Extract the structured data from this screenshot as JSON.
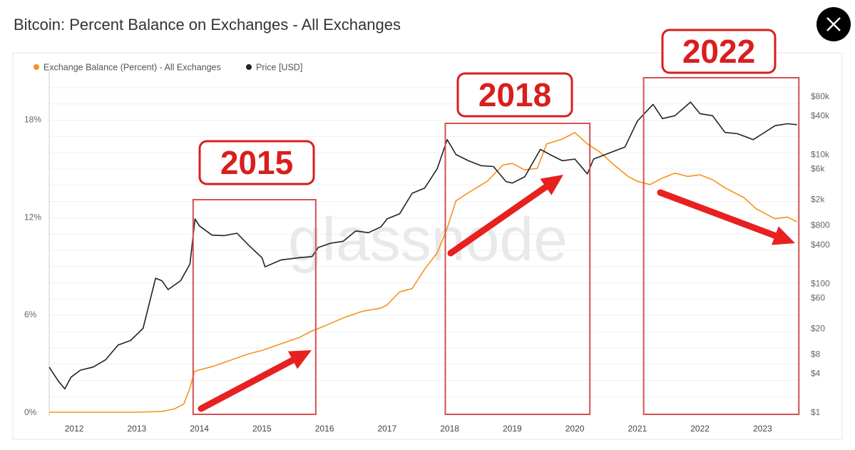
{
  "header": {
    "title": "Bitcoin: Percent Balance on Exchanges - All Exchanges",
    "close_icon": "close-icon"
  },
  "legend": [
    {
      "name": "Exchange Balance (Percent) - All Exchanges",
      "color": "#f7931a"
    },
    {
      "name": "Price [USD]",
      "color": "#222222"
    }
  ],
  "watermark": "glassnode",
  "chart_data": {
    "type": "line",
    "title": "Bitcoin: Percent Balance on Exchanges - All Exchanges",
    "x_ticks": [
      "2012",
      "2013",
      "2014",
      "2015",
      "2016",
      "2017",
      "2018",
      "2019",
      "2020",
      "2021",
      "2022",
      "2023"
    ],
    "xlim": [
      2011.6,
      2023.6
    ],
    "y_left": {
      "ticks": [
        "0%",
        "6%",
        "12%",
        "18%"
      ],
      "values": [
        0,
        6,
        12,
        18
      ],
      "ylim": [
        0,
        19.8
      ]
    },
    "y_right": {
      "scale": "log",
      "ticks": [
        "$1",
        "$4",
        "$8",
        "$20",
        "$60",
        "$100",
        "$400",
        "$800",
        "$2k",
        "$6k",
        "$10k",
        "$40k",
        "$80k"
      ],
      "values": [
        1,
        4,
        8,
        20,
        60,
        100,
        400,
        800,
        2000,
        6000,
        10000,
        40000,
        80000
      ]
    },
    "grid": true,
    "legend_placement": "top-left",
    "series": [
      {
        "name": "Exchange Balance (Percent) - All Exchanges",
        "color": "#f7931a",
        "axis": "left",
        "points": [
          [
            2011.6,
            0.0
          ],
          [
            2012.0,
            0.0
          ],
          [
            2012.5,
            0.0
          ],
          [
            2013.0,
            0.0
          ],
          [
            2013.4,
            0.05
          ],
          [
            2013.6,
            0.2
          ],
          [
            2013.75,
            0.5
          ],
          [
            2013.85,
            1.5
          ],
          [
            2013.92,
            2.5
          ],
          [
            2014.0,
            2.6
          ],
          [
            2014.2,
            2.8
          ],
          [
            2014.5,
            3.2
          ],
          [
            2014.8,
            3.6
          ],
          [
            2015.0,
            3.8
          ],
          [
            2015.3,
            4.2
          ],
          [
            2015.6,
            4.6
          ],
          [
            2015.8,
            5.0
          ],
          [
            2016.0,
            5.3
          ],
          [
            2016.3,
            5.8
          ],
          [
            2016.6,
            6.2
          ],
          [
            2016.9,
            6.4
          ],
          [
            2017.0,
            6.6
          ],
          [
            2017.2,
            7.4
          ],
          [
            2017.4,
            7.6
          ],
          [
            2017.6,
            8.8
          ],
          [
            2017.8,
            9.8
          ],
          [
            2017.95,
            11.2
          ],
          [
            2018.1,
            13.0
          ],
          [
            2018.3,
            13.5
          ],
          [
            2018.6,
            14.2
          ],
          [
            2018.85,
            15.2
          ],
          [
            2019.0,
            15.3
          ],
          [
            2019.2,
            14.9
          ],
          [
            2019.4,
            15.0
          ],
          [
            2019.55,
            16.5
          ],
          [
            2019.8,
            16.8
          ],
          [
            2020.0,
            17.2
          ],
          [
            2020.2,
            16.5
          ],
          [
            2020.4,
            16.0
          ],
          [
            2020.6,
            15.3
          ],
          [
            2020.85,
            14.5
          ],
          [
            2021.0,
            14.2
          ],
          [
            2021.2,
            14.0
          ],
          [
            2021.4,
            14.4
          ],
          [
            2021.6,
            14.7
          ],
          [
            2021.8,
            14.5
          ],
          [
            2022.0,
            14.6
          ],
          [
            2022.2,
            14.3
          ],
          [
            2022.4,
            13.8
          ],
          [
            2022.7,
            13.2
          ],
          [
            2022.9,
            12.5
          ],
          [
            2023.0,
            12.3
          ],
          [
            2023.2,
            11.9
          ],
          [
            2023.4,
            12.0
          ],
          [
            2023.55,
            11.7
          ]
        ]
      },
      {
        "name": "Price [USD]",
        "color": "#222222",
        "axis": "right",
        "points": [
          [
            2011.6,
            5
          ],
          [
            2011.75,
            3
          ],
          [
            2011.85,
            2.3
          ],
          [
            2011.95,
            3.5
          ],
          [
            2012.1,
            4.5
          ],
          [
            2012.3,
            5
          ],
          [
            2012.5,
            6.5
          ],
          [
            2012.7,
            11
          ],
          [
            2012.9,
            13
          ],
          [
            2013.1,
            20
          ],
          [
            2013.3,
            120
          ],
          [
            2013.4,
            110
          ],
          [
            2013.5,
            80
          ],
          [
            2013.7,
            110
          ],
          [
            2013.85,
            200
          ],
          [
            2013.93,
            1000
          ],
          [
            2014.0,
            780
          ],
          [
            2014.2,
            560
          ],
          [
            2014.4,
            550
          ],
          [
            2014.6,
            600
          ],
          [
            2014.8,
            380
          ],
          [
            2015.0,
            250
          ],
          [
            2015.05,
            180
          ],
          [
            2015.3,
            230
          ],
          [
            2015.6,
            250
          ],
          [
            2015.8,
            260
          ],
          [
            2015.9,
            360
          ],
          [
            2016.1,
            420
          ],
          [
            2016.3,
            450
          ],
          [
            2016.5,
            650
          ],
          [
            2016.7,
            610
          ],
          [
            2016.9,
            750
          ],
          [
            2017.0,
            1000
          ],
          [
            2017.2,
            1200
          ],
          [
            2017.4,
            2500
          ],
          [
            2017.6,
            3000
          ],
          [
            2017.8,
            6000
          ],
          [
            2017.96,
            17000
          ],
          [
            2018.1,
            10000
          ],
          [
            2018.3,
            8000
          ],
          [
            2018.5,
            6700
          ],
          [
            2018.7,
            6500
          ],
          [
            2018.9,
            3800
          ],
          [
            2019.0,
            3600
          ],
          [
            2019.2,
            4500
          ],
          [
            2019.45,
            12000
          ],
          [
            2019.6,
            10000
          ],
          [
            2019.8,
            8000
          ],
          [
            2020.0,
            8500
          ],
          [
            2020.2,
            5000
          ],
          [
            2020.3,
            8500
          ],
          [
            2020.6,
            11000
          ],
          [
            2020.8,
            13000
          ],
          [
            2021.0,
            33000
          ],
          [
            2021.25,
            60000
          ],
          [
            2021.4,
            36000
          ],
          [
            2021.6,
            40000
          ],
          [
            2021.85,
            65000
          ],
          [
            2022.0,
            43000
          ],
          [
            2022.2,
            40000
          ],
          [
            2022.4,
            22000
          ],
          [
            2022.6,
            21000
          ],
          [
            2022.85,
            17000
          ],
          [
            2023.0,
            21000
          ],
          [
            2023.2,
            28000
          ],
          [
            2023.4,
            30000
          ],
          [
            2023.55,
            29000
          ]
        ]
      }
    ],
    "annotations": [
      {
        "label": "2015",
        "box_years": [
          2013.9,
          2015.86
        ],
        "arrow": "up"
      },
      {
        "label": "2018",
        "box_years": [
          2017.93,
          2020.24
        ],
        "arrow": "up"
      },
      {
        "label": "2022",
        "box_years": [
          2021.1,
          2023.58
        ],
        "arrow": "down"
      }
    ]
  }
}
